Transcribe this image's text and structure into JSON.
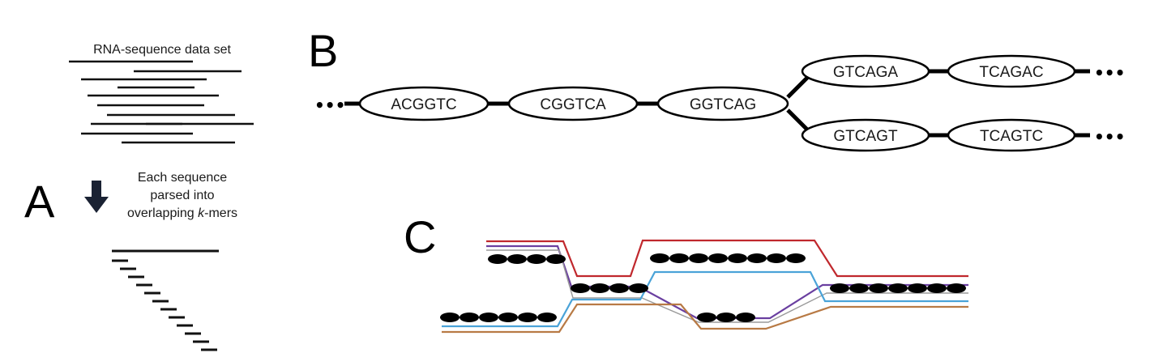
{
  "panel_a": {
    "letter": "A",
    "dataset_label": "RNA-sequence data set",
    "parse_caption_line1": "Each sequence",
    "parse_caption_line2": "parsed into",
    "parse_caption_line3_prefix": "overlapping ",
    "parse_caption_line3_italic": "k",
    "parse_caption_line3_suffix": "-mers",
    "arrow_icon": "down-arrow-icon"
  },
  "panel_b": {
    "letter": "B",
    "ellipsis": "•••",
    "kmers_main": [
      "ACGGTC",
      "CGGTCA",
      "GGTCAG"
    ],
    "kmers_branch_top": [
      "GTCAGA",
      "TCAGAC"
    ],
    "kmers_branch_bottom": [
      "GTCAGT",
      "TCAGTC"
    ]
  },
  "panel_c": {
    "letter": "C",
    "path_colors": {
      "red": "#c0282d",
      "purple": "#6a3fa0",
      "blue": "#4aa3d8",
      "brown": "#b87a45",
      "gray": "#9a9a9a"
    }
  }
}
